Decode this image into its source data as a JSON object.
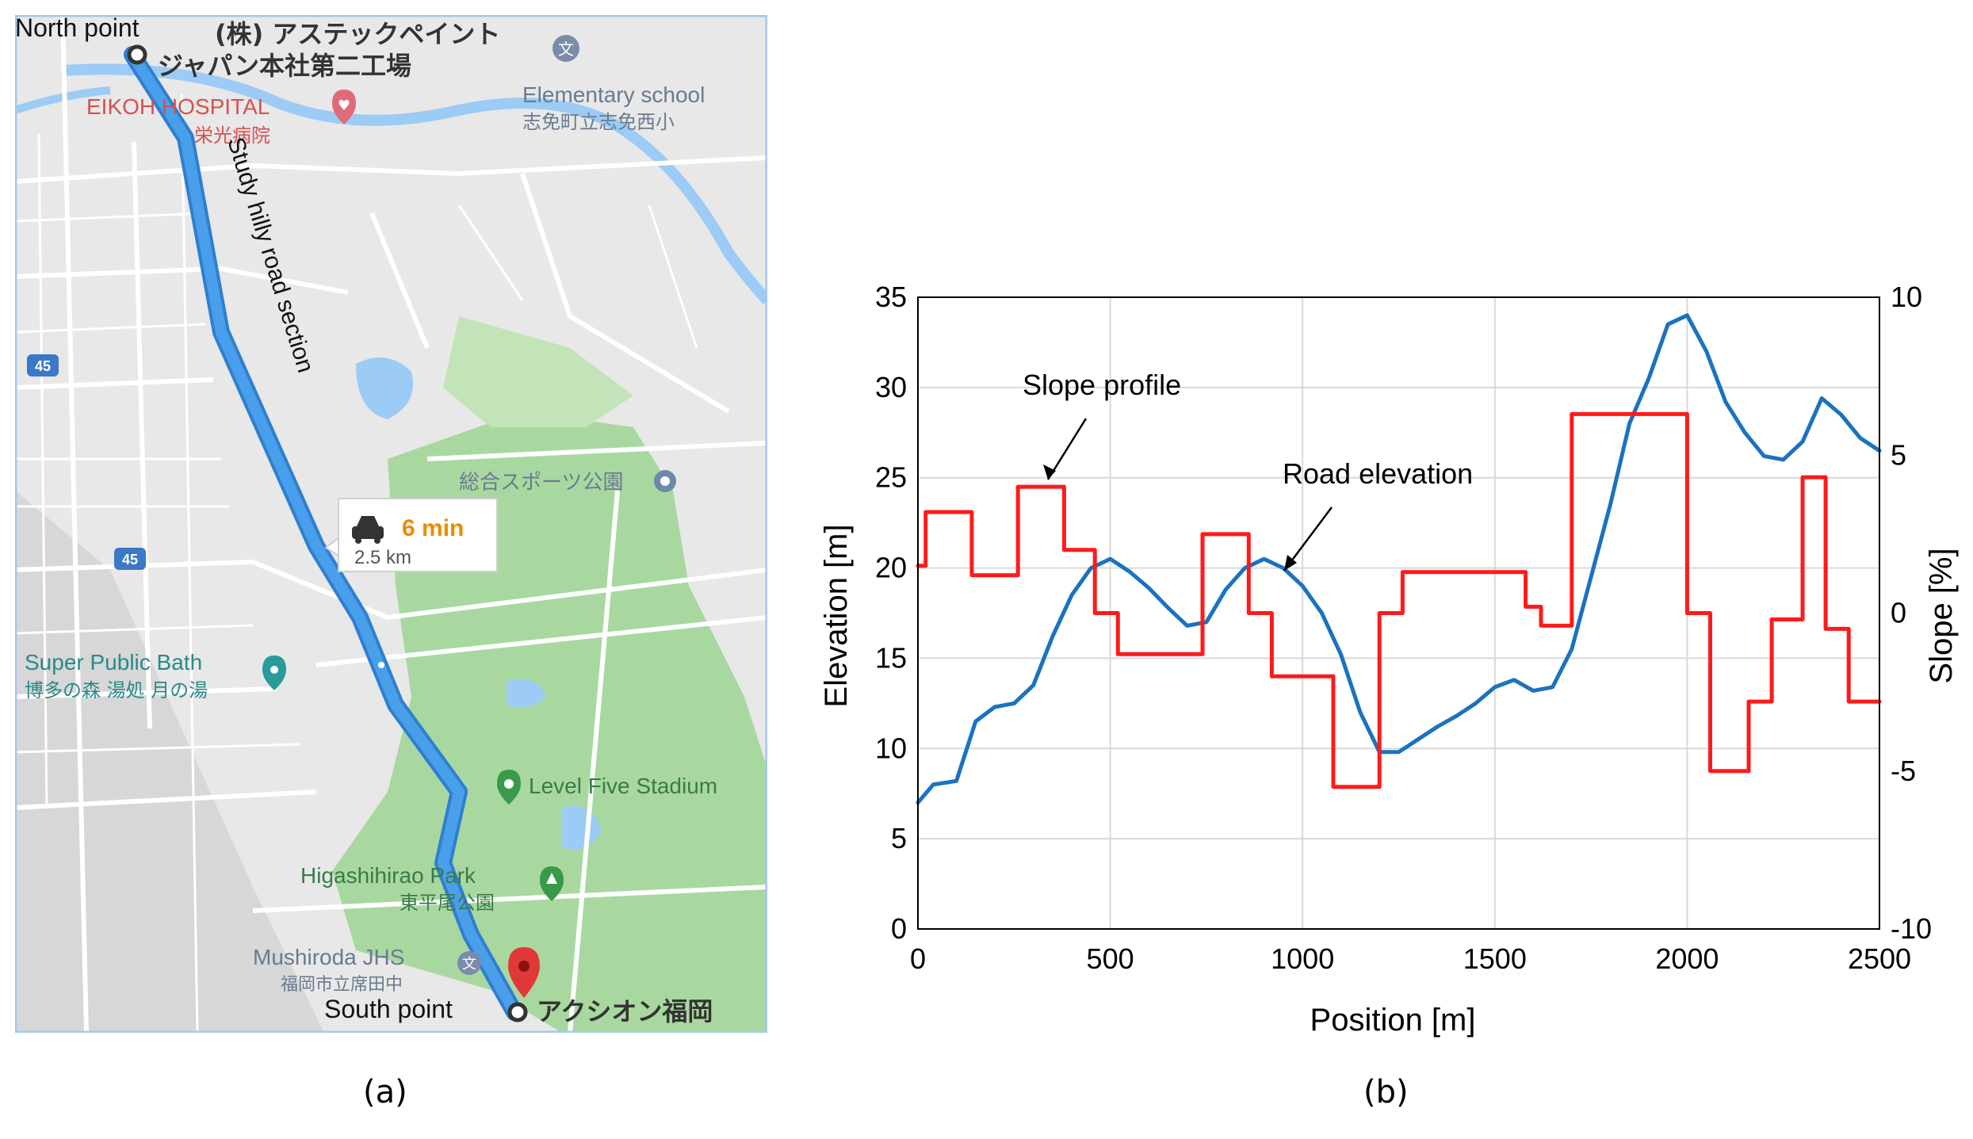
{
  "map": {
    "labels": {
      "north_point": "North point",
      "south_point": "South point",
      "factory_line1": "(株) アステックペイント",
      "factory_line2": "ジャパン本社第二工場",
      "hospital_en": "EIKOH HOSPITAL",
      "hospital_jp": "栄光病院",
      "school_en": "Elementary school",
      "school_jp": "志免町立志免西小",
      "road_section": "Study hilly road section",
      "route_time": "6 min",
      "route_distance": "2.5 km",
      "bath_en": "Super Public Bath",
      "bath_jp": "博多の森 湯処 月の湯",
      "sports_park_jp": "総合スポーツ公園",
      "stadium": "Level Five Stadium",
      "park_en": "Higashihirao Park",
      "park_jp": "東平尾公園",
      "jhs_en": "Mushiroda JHS",
      "jhs_jp": "福岡市立席田中",
      "destination_jp": "アクシオン福岡",
      "route_45": "45"
    },
    "colors": {
      "route": "#4a9fea",
      "route_edge": "#2f7fd0",
      "park": "#a8d8a0",
      "water": "#9ccbf5",
      "land": "#e8e8e8",
      "road": "#ffffff",
      "pin": "#e03838",
      "route_time": "#f08a00",
      "frame": "#a8c8e8"
    },
    "icons": [
      "car-icon",
      "hospital-pin-icon",
      "school-pin-icon",
      "bath-pin-icon",
      "park-pin-icon",
      "stadium-pin-icon",
      "destination-pin-icon",
      "route-shield-icon",
      "point-marker-icon"
    ]
  },
  "chart_data": {
    "type": "line",
    "xlabel": "Position [m]",
    "ylabel": "Elevation [m]",
    "y2label": "Slope [%]",
    "xlim": [
      0,
      2500
    ],
    "ylim": [
      0,
      35
    ],
    "y2lim": [
      -10,
      10
    ],
    "xticks": [
      0,
      500,
      1000,
      1500,
      2000,
      2500
    ],
    "yticks": [
      0,
      5,
      10,
      15,
      20,
      25,
      30,
      35
    ],
    "y2ticks": [
      -10,
      -5,
      0,
      5,
      10
    ],
    "grid": true,
    "series": [
      {
        "axis": "left",
        "color": "#1a72c0",
        "x": [
          0,
          40,
          100,
          150,
          200,
          250,
          300,
          350,
          400,
          450,
          500,
          550,
          600,
          650,
          700,
          750,
          800,
          850,
          900,
          950,
          1000,
          1050,
          1100,
          1150,
          1200,
          1250,
          1300,
          1350,
          1400,
          1450,
          1500,
          1550,
          1600,
          1650,
          1700,
          1750,
          1800,
          1850,
          1900,
          1950,
          2000,
          2050,
          2100,
          2150,
          2200,
          2250,
          2300,
          2350,
          2400,
          2450,
          2500
        ],
        "values": [
          7,
          8,
          8.2,
          11.5,
          12.3,
          12.5,
          13.5,
          16.2,
          18.5,
          20,
          20.5,
          19.8,
          18.9,
          17.8,
          16.8,
          17,
          18.8,
          20,
          20.5,
          20,
          19,
          17.5,
          15.2,
          12,
          9.8,
          9.8,
          10.5,
          11.2,
          11.8,
          12.5,
          13.4,
          13.8,
          13.2,
          13.4,
          15.5,
          19.5,
          23.5,
          28,
          30.5,
          33.5,
          34,
          32,
          29.2,
          27.5,
          26.2,
          26,
          27,
          29.4,
          28.5,
          27.2,
          26.5
        ]
      },
      {
        "axis": "right",
        "color": "#ff1a1a",
        "x": [
          0,
          20,
          20,
          140,
          140,
          260,
          260,
          380,
          380,
          460,
          460,
          520,
          520,
          740,
          740,
          860,
          860,
          920,
          920,
          1080,
          1080,
          1200,
          1200,
          1260,
          1260,
          1580,
          1580,
          1620,
          1620,
          1700,
          1700,
          2000,
          2000,
          2060,
          2060,
          2160,
          2160,
          2220,
          2220,
          2300,
          2300,
          2360,
          2360,
          2420,
          2420,
          2460,
          2460,
          2500
        ],
        "values": [
          1.5,
          1.5,
          3.2,
          3.2,
          1.2,
          1.2,
          4,
          4,
          2,
          2,
          0,
          0,
          -1.3,
          -1.3,
          2.5,
          2.5,
          0,
          0,
          -2,
          -2,
          -5.5,
          -5.5,
          0,
          0,
          1.3,
          1.3,
          0.2,
          0.2,
          -0.4,
          -0.4,
          6.3,
          6.3,
          0,
          0,
          -5,
          -5,
          -2.8,
          -2.8,
          -0.2,
          -0.2,
          4.3,
          4.3,
          -0.5,
          -0.5,
          -2.8,
          -2.8,
          -2.8,
          -2.8
        ]
      }
    ],
    "annotations": [
      "Slope profile",
      "Road elevation"
    ]
  },
  "captions": {
    "a": "(a)",
    "b": "(b)"
  }
}
